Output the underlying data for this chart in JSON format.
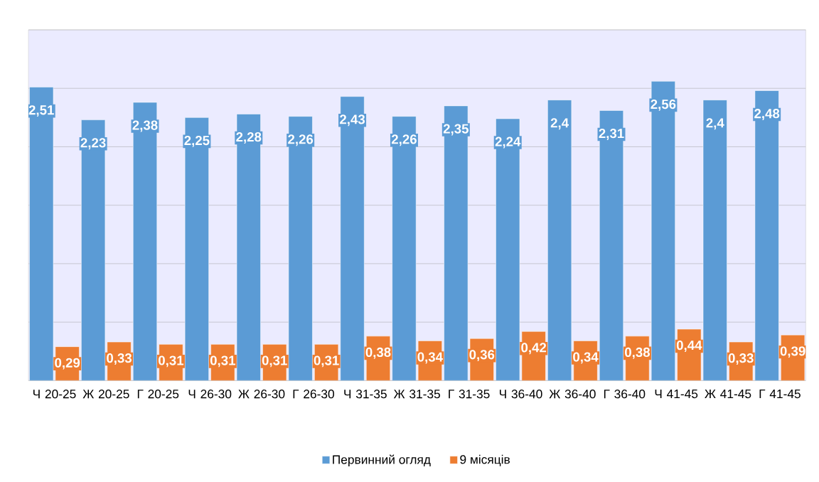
{
  "chart_data": {
    "type": "bar",
    "categories": [
      "Ч 20-25",
      "Ж 20-25",
      "Г 20-25",
      "Ч 26-30",
      "Ж 26-30",
      "Г 26-30",
      "Ч 31-35",
      "Ж 31-35",
      "Г 31-35",
      "Ч 36-40",
      "Ж 36-40",
      "Г 36-40",
      "Ч 41-45",
      "Ж 41-45",
      "Г 41-45"
    ],
    "series": [
      {
        "name": "Первинний огляд",
        "color": "#5b9bd5",
        "values": [
          2.51,
          2.23,
          2.38,
          2.25,
          2.28,
          2.26,
          2.43,
          2.26,
          2.35,
          2.24,
          2.4,
          2.31,
          2.56,
          2.4,
          2.48
        ],
        "value_labels": [
          "2,51",
          "2,23",
          "2,38",
          "2,25",
          "2,28",
          "2,26",
          "2,43",
          "2,26",
          "2,35",
          "2,24",
          "2,4",
          "2,31",
          "2,56",
          "2,4",
          "2,48"
        ]
      },
      {
        "name": "9 місяців",
        "color": "#ed7d31",
        "values": [
          0.29,
          0.33,
          0.31,
          0.31,
          0.31,
          0.31,
          0.38,
          0.34,
          0.36,
          0.42,
          0.34,
          0.38,
          0.44,
          0.33,
          0.39
        ],
        "value_labels": [
          "0,29",
          "0,33",
          "0,31",
          "0,31",
          "0,31",
          "0,31",
          "0,38",
          "0,34",
          "0,36",
          "0,42",
          "0,34",
          "0,38",
          "0,44",
          "0,33",
          "0,39"
        ]
      }
    ],
    "ylim": [
      0,
      3
    ],
    "yticks": [
      {
        "value": 0,
        "label": null
      },
      {
        "value": 0.5,
        "label": null
      },
      {
        "value": 1,
        "label": null
      },
      {
        "value": 1.5,
        "label": null
      },
      {
        "value": 2,
        "label": null
      },
      {
        "value": 2.5,
        "label": null
      },
      {
        "value": 3,
        "label": null
      }
    ],
    "tick_labels": "x",
    "grid": "y",
    "legend": "bottom"
  }
}
